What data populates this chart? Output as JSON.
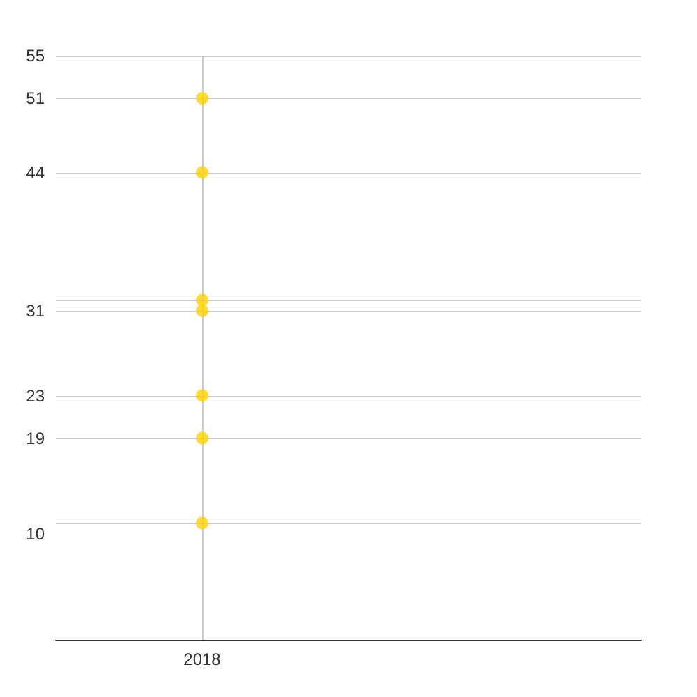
{
  "chart_data": {
    "type": "scatter",
    "categories": [
      "2018",
      null
    ],
    "series": [
      {
        "color": "#ffd200",
        "values": [
          51,
          null
        ]
      },
      {
        "color": "#ffd200",
        "values": [
          44,
          null
        ]
      },
      {
        "color": "#ffd200",
        "values": [
          32,
          null
        ]
      },
      {
        "color": "#ffd200",
        "values": [
          31,
          null
        ]
      },
      {
        "color": "#ffd200",
        "values": [
          23,
          null
        ]
      },
      {
        "color": "#ffd200",
        "values": [
          19,
          null
        ]
      },
      {
        "color": "#ffd200",
        "values": [
          11,
          null
        ]
      }
    ],
    "ylim": [
      0,
      55
    ],
    "yticks": [
      10,
      {
        "value": 11,
        "label": null
      },
      19,
      23,
      31,
      {
        "value": 32,
        "label": null
      },
      44,
      51,
      55
    ],
    "grid": true,
    "marker": "circle"
  }
}
